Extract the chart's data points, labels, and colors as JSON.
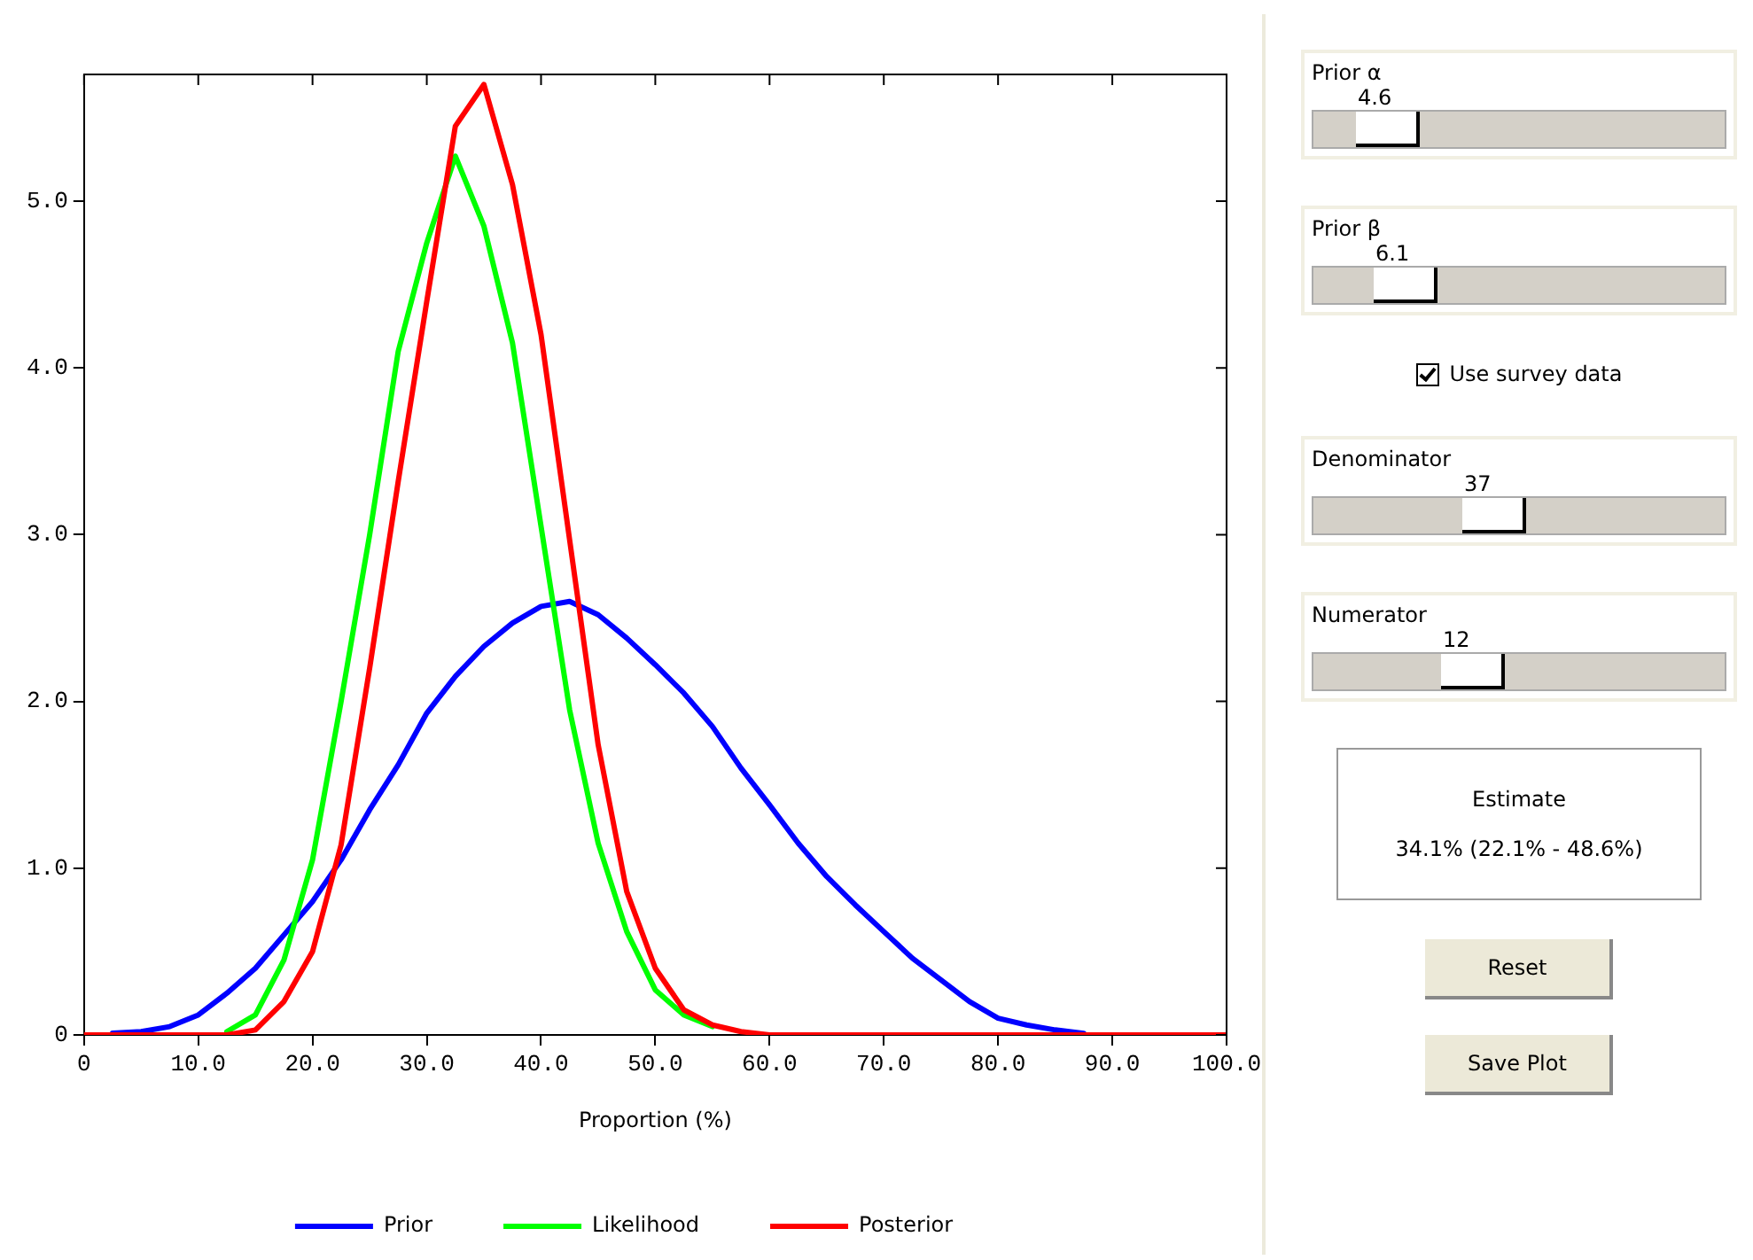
{
  "chart_data": {
    "type": "line",
    "xlabel": "Proportion (%)",
    "x": [
      0,
      2.5,
      5,
      7.5,
      10,
      12.5,
      15,
      17.5,
      20,
      22.5,
      25,
      27.5,
      30,
      32.5,
      35,
      37.5,
      40,
      42.5,
      45,
      47.5,
      50,
      52.5,
      55,
      57.5,
      60,
      62.5,
      65,
      67.5,
      70,
      72.5,
      75,
      77.5,
      80,
      82.5,
      85,
      87.5,
      90,
      92.5,
      95,
      97.5,
      100
    ],
    "series": [
      {
        "name": "Prior",
        "color": "#0000ff",
        "values": [
          null,
          0.01,
          0.02,
          0.05,
          0.12,
          0.25,
          0.4,
          0.6,
          0.8,
          1.05,
          1.35,
          1.62,
          1.93,
          2.15,
          2.33,
          2.47,
          2.57,
          2.6,
          2.52,
          2.38,
          2.22,
          2.05,
          1.85,
          1.6,
          1.38,
          1.15,
          0.95,
          0.78,
          0.62,
          0.46,
          0.33,
          0.2,
          0.1,
          0.06,
          0.03,
          0.01,
          null,
          null,
          null,
          null,
          null
        ]
      },
      {
        "name": "Likelihood",
        "color": "#00ff00",
        "values": [
          null,
          null,
          null,
          null,
          null,
          0.02,
          0.12,
          0.45,
          1.05,
          2.0,
          3.0,
          4.1,
          4.75,
          5.27,
          4.85,
          4.15,
          3.05,
          1.95,
          1.15,
          0.62,
          0.27,
          0.12,
          0.05,
          null,
          null,
          null,
          null,
          null,
          null,
          null,
          null,
          null,
          null,
          null,
          null,
          null,
          null,
          null,
          null,
          null,
          null
        ]
      },
      {
        "name": "Posterior",
        "color": "#ff0000",
        "values": [
          0,
          0,
          0,
          0,
          0,
          0,
          0.03,
          0.2,
          0.5,
          1.14,
          2.2,
          3.32,
          4.4,
          5.45,
          5.7,
          5.1,
          4.2,
          2.97,
          1.74,
          0.86,
          0.4,
          0.15,
          0.06,
          0.02,
          0,
          0,
          0,
          0,
          0,
          0,
          0,
          0,
          0,
          0,
          0,
          0,
          0,
          0,
          0,
          0,
          0
        ]
      }
    ],
    "xlim": [
      0,
      100
    ],
    "xticks": [
      0,
      {
        "value": 10,
        "label": "10.0"
      },
      {
        "value": 20,
        "label": "20.0"
      },
      {
        "value": 30,
        "label": "30.0"
      },
      {
        "value": 40,
        "label": "40.0"
      },
      {
        "value": 50,
        "label": "50.0"
      },
      {
        "value": 60,
        "label": "60.0"
      },
      {
        "value": 70,
        "label": "70.0"
      },
      {
        "value": 80,
        "label": "80.0"
      },
      {
        "value": 90,
        "label": "90.0"
      },
      {
        "value": 100,
        "label": "100.0"
      }
    ],
    "ylim": [
      0,
      5.76
    ],
    "yticks": [
      0,
      {
        "value": 1,
        "label": "1.0"
      },
      {
        "value": 2,
        "label": "2.0"
      },
      {
        "value": 3,
        "label": "3.0"
      },
      {
        "value": 4,
        "label": "4.0"
      },
      {
        "value": 5,
        "label": "5.0"
      }
    ],
    "grid": false,
    "legend": "bottom",
    "marker": "none",
    "line_style": "solid",
    "annotations": [
      "Prior α",
      "4.6",
      "Prior β",
      "6.1",
      "Use survey data",
      "Denominator",
      "37",
      "Numerator",
      "12",
      "Estimate",
      "34.1% (22.1% - 48.6%)",
      "Reset",
      "Save Plot"
    ]
  }
}
